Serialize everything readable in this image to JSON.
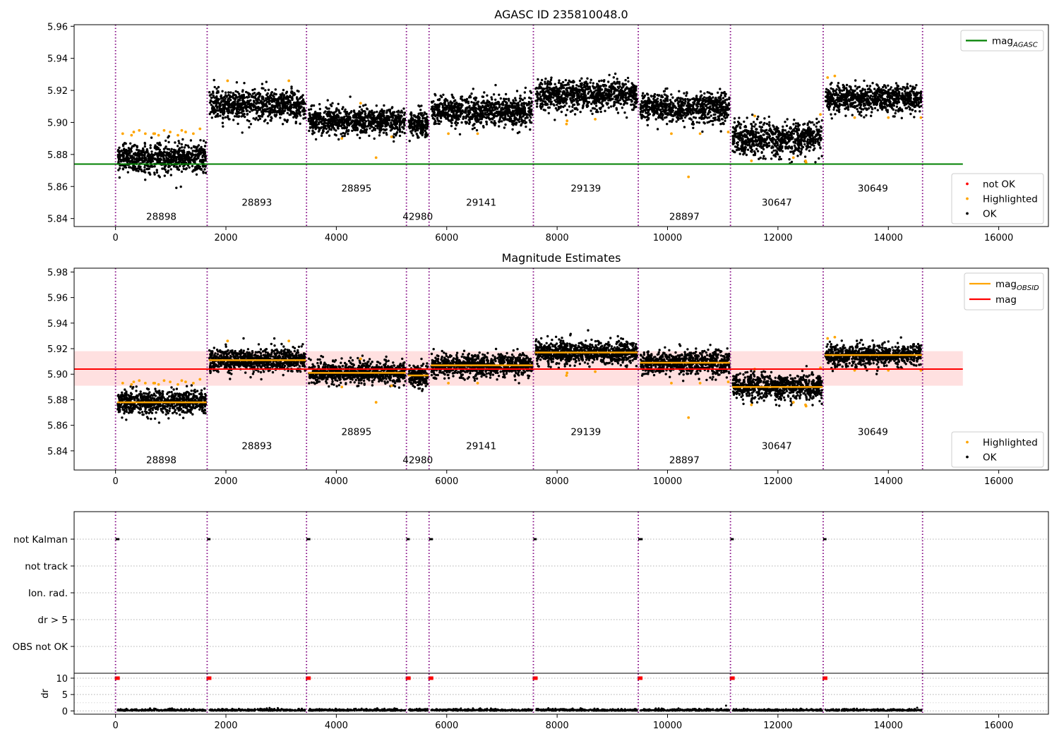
{
  "chart_data": [
    {
      "id": "agasc",
      "type": "scatter",
      "title": "AGASC ID 235810048.0",
      "xlim": [
        -750,
        16900
      ],
      "ylim": [
        5.835,
        5.961
      ],
      "x_ticks": [
        0,
        2000,
        4000,
        6000,
        8000,
        10000,
        12000,
        14000,
        16000
      ],
      "y_ticks": [
        5.84,
        5.86,
        5.88,
        5.9,
        5.92,
        5.94,
        5.96
      ],
      "y_tick_labels": [
        "5.84",
        "5.86",
        "5.88",
        "5.90",
        "5.92",
        "5.94",
        "5.96"
      ],
      "boundaries": [
        0,
        1660,
        3460,
        5270,
        5680,
        7570,
        9470,
        11140,
        12820,
        14620
      ],
      "obsids": [
        {
          "label": "28898",
          "x": 830,
          "y": 5.84
        },
        {
          "label": "28893",
          "x": 2560,
          "y": 5.849
        },
        {
          "label": "28895",
          "x": 3465,
          "y": 5.858,
          "xc": 4365
        },
        {
          "label": "42980",
          "x": 5475,
          "y": 5.84
        },
        {
          "label": "29141",
          "x": 6625,
          "y": 5.849
        },
        {
          "label": "29139",
          "x": 8520,
          "y": 5.858
        },
        {
          "label": "28897",
          "x": 10305,
          "y": 5.84
        },
        {
          "label": "30647",
          "x": 11980,
          "y": 5.849
        },
        {
          "label": "30649",
          "x": 13720,
          "y": 5.858
        }
      ],
      "segments": [
        {
          "x0": 0,
          "x1": 1660,
          "mean": 5.878,
          "sd": 0.0045
        },
        {
          "x0": 1660,
          "x1": 3460,
          "mean": 5.911,
          "sd": 0.0045
        },
        {
          "x0": 3460,
          "x1": 5270,
          "mean": 5.901,
          "sd": 0.004
        },
        {
          "x0": 5270,
          "x1": 5680,
          "mean": 5.899,
          "sd": 0.004
        },
        {
          "x0": 5680,
          "x1": 7570,
          "mean": 5.907,
          "sd": 0.0045
        },
        {
          "x0": 7570,
          "x1": 9470,
          "mean": 5.917,
          "sd": 0.0045
        },
        {
          "x0": 9470,
          "x1": 11140,
          "mean": 5.909,
          "sd": 0.0045
        },
        {
          "x0": 11140,
          "x1": 12820,
          "mean": 5.89,
          "sd": 0.005
        },
        {
          "x0": 12820,
          "x1": 14620,
          "mean": 5.915,
          "sd": 0.004
        }
      ],
      "highlighted": [
        [
          130,
          5.893
        ],
        [
          290,
          5.892
        ],
        [
          330,
          5.894
        ],
        [
          430,
          5.895
        ],
        [
          540,
          5.893
        ],
        [
          690,
          5.893
        ],
        [
          710,
          5.893
        ],
        [
          780,
          5.892
        ],
        [
          880,
          5.895
        ],
        [
          990,
          5.894
        ],
        [
          1130,
          5.892
        ],
        [
          1200,
          5.895
        ],
        [
          1270,
          5.894
        ],
        [
          1410,
          5.893
        ],
        [
          1530,
          5.896
        ],
        [
          2030,
          5.926
        ],
        [
          3140,
          5.926
        ],
        [
          4440,
          5.912
        ],
        [
          4100,
          5.89
        ],
        [
          4720,
          5.878
        ],
        [
          5000,
          5.891
        ],
        [
          6030,
          5.893
        ],
        [
          6560,
          5.893
        ],
        [
          8170,
          5.899
        ],
        [
          8180,
          5.901
        ],
        [
          8690,
          5.902
        ],
        [
          10070,
          5.893
        ],
        [
          10380,
          5.866
        ],
        [
          10590,
          5.893
        ],
        [
          11100,
          5.894
        ],
        [
          11520,
          5.876
        ],
        [
          11580,
          5.904
        ],
        [
          12280,
          5.878
        ],
        [
          12500,
          5.876
        ],
        [
          12510,
          5.875
        ],
        [
          12770,
          5.905
        ],
        [
          12900,
          5.928
        ],
        [
          13030,
          5.929
        ],
        [
          13390,
          5.903
        ],
        [
          14000,
          5.903
        ],
        [
          14590,
          5.903
        ]
      ],
      "ref_line": {
        "y": 5.874,
        "x0": -750,
        "x1": 15350,
        "color": "#008000"
      },
      "legend_top": {
        "entries": [
          {
            "label": "mag",
            "sub": "AGASC",
            "kind": "line",
            "color": "#008000"
          }
        ],
        "placement": "upper right"
      },
      "legend_bottom": {
        "entries": [
          {
            "label": "not OK",
            "kind": "marker",
            "color": "#ff0000"
          },
          {
            "label": "Highlighted",
            "kind": "marker",
            "color": "#ffa500"
          },
          {
            "label": "OK",
            "kind": "marker",
            "color": "#000000"
          }
        ],
        "placement": "lower right"
      }
    },
    {
      "id": "estimates",
      "type": "scatter",
      "title": "Magnitude Estimates",
      "xlim": [
        -750,
        16900
      ],
      "ylim": [
        5.825,
        5.983
      ],
      "x_ticks": [
        0,
        2000,
        4000,
        6000,
        8000,
        10000,
        12000,
        14000,
        16000
      ],
      "y_ticks": [
        5.84,
        5.86,
        5.88,
        5.9,
        5.92,
        5.94,
        5.96,
        5.98
      ],
      "y_tick_labels": [
        "5.84",
        "5.86",
        "5.88",
        "5.90",
        "5.92",
        "5.94",
        "5.96",
        "5.98"
      ],
      "mag": {
        "y": 5.904,
        "band": [
          5.891,
          5.918
        ],
        "x0": -750,
        "x1": 15350,
        "color": "#ff0000"
      },
      "obsid_mag_color": "#ffa500",
      "legend_top": {
        "entries": [
          {
            "label": "mag",
            "sub": "OBSID",
            "kind": "line",
            "color": "#ffa500"
          },
          {
            "label": "mag",
            "kind": "line",
            "color": "#ff0000"
          }
        ],
        "placement": "upper right"
      },
      "legend_bottom": {
        "entries": [
          {
            "label": "Highlighted",
            "kind": "marker",
            "color": "#ffa500"
          },
          {
            "label": "OK",
            "kind": "marker",
            "color": "#000000"
          }
        ],
        "placement": "lower right"
      }
    },
    {
      "id": "flags",
      "type": "scatter",
      "categories": [
        "not Kalman",
        "not track",
        "Ion. rad.",
        "dr > 5",
        "OBS not OK"
      ],
      "not_kalman_ranges": [
        [
          0,
          70
        ],
        [
          1660,
          1720
        ],
        [
          3460,
          3530
        ],
        [
          5270,
          5330
        ],
        [
          5680,
          5750
        ],
        [
          7570,
          7630
        ],
        [
          9470,
          9550
        ],
        [
          11140,
          11200
        ],
        [
          12820,
          12880
        ]
      ]
    },
    {
      "id": "dr",
      "type": "scatter",
      "ylabel": "dr",
      "ylim": [
        -1,
        11.5
      ],
      "y_ticks": [
        0,
        5,
        10
      ],
      "y_tick_labels": [
        "0",
        "5",
        "10"
      ],
      "x_ticks": [
        0,
        2000,
        4000,
        6000,
        8000,
        10000,
        12000,
        14000,
        16000
      ],
      "x_tick_labels": [
        "0",
        "2000",
        "4000",
        "6000",
        "8000",
        "10000",
        "12000",
        "14000",
        "16000"
      ],
      "spikes": [
        0,
        1660,
        3460,
        5270,
        5680,
        7570,
        9470,
        11140,
        12820
      ],
      "spike_value": 10,
      "outlier": [
        11060,
        1.6
      ],
      "colors": {
        "spike": "#ff0000",
        "ok": "#000000"
      }
    }
  ]
}
